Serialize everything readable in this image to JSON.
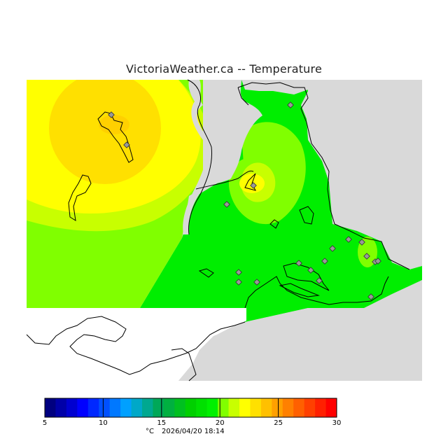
{
  "title": "VictoriaWeather.ca -- Temperature",
  "legend": {
    "unit": "°C",
    "timestamp": "2026/04/20 18:14",
    "min": 5,
    "max": 30,
    "ticks": [
      "5",
      "10",
      "15",
      "20",
      "25",
      "30"
    ],
    "colors": [
      "#000080",
      "#0000a8",
      "#0000d0",
      "#0000ff",
      "#0028ff",
      "#0050ff",
      "#0078ff",
      "#00a0ff",
      "#00a8c8",
      "#00a890",
      "#00a858",
      "#00b040",
      "#00c020",
      "#00d000",
      "#00e000",
      "#00f000",
      "#80ff00",
      "#c8ff00",
      "#ffff00",
      "#ffe000",
      "#ffc000",
      "#ffa000",
      "#ff8000",
      "#ff6000",
      "#ff4000",
      "#ff2000",
      "#ff0000"
    ]
  },
  "colors": {
    "land_background": "#d9d9d9",
    "sea_white": "#ffffff",
    "temp_24": "#ffdd00",
    "temp_23": "#ffe000",
    "temp_22": "#ffff00",
    "temp_21": "#c8ff00",
    "temp_20": "#80ff00",
    "temp_19": "#00ee00",
    "station_marker": "#888888"
  },
  "stations_count_note": "",
  "icons": {
    "station": "diamond-marker-icon"
  }
}
